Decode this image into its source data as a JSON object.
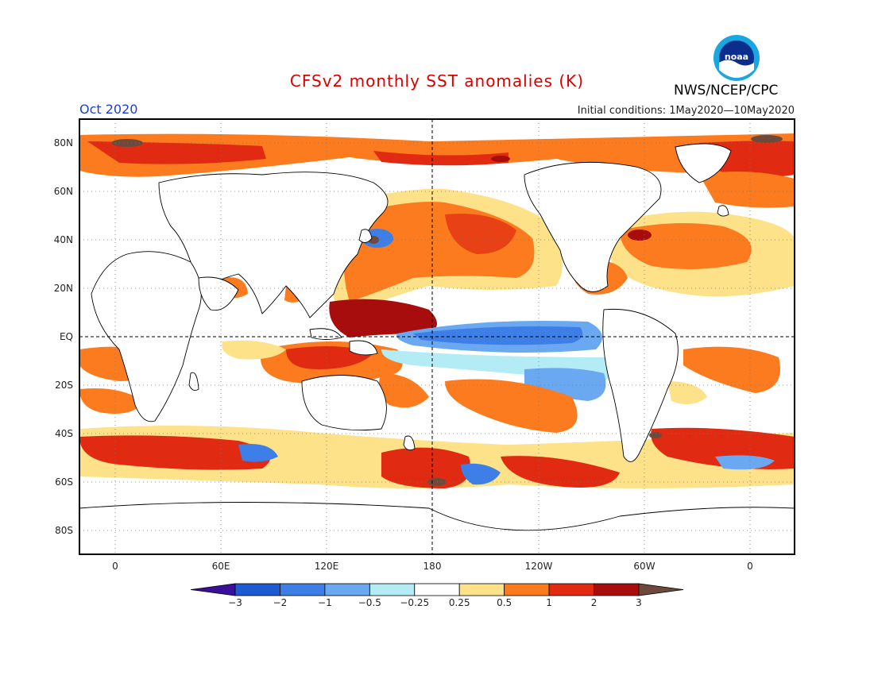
{
  "header": {
    "title": "CFSv2 monthly SST anomalies (K)",
    "month": "Oct 2020",
    "initial_conditions": "Initial conditions: 1May2020—10May2020",
    "organization": "NWS/NCEP/CPC",
    "logo_text": "noaa"
  },
  "axes": {
    "lat_labels": [
      "80N",
      "60N",
      "40N",
      "20N",
      "EQ",
      "20S",
      "40S",
      "60S",
      "80S"
    ],
    "lon_labels": [
      "0",
      "60E",
      "120E",
      "180",
      "120W",
      "60W",
      "0"
    ]
  },
  "colorbar": {
    "labels": [
      "−3",
      "−2",
      "−1",
      "−0.5",
      "−0.25",
      "0.25",
      "0.5",
      "1",
      "2",
      "3"
    ],
    "colors": [
      "#3a0f9c",
      "#1f5bd0",
      "#3d7fe6",
      "#6aa8f2",
      "#b3ecf4",
      "#ffffff",
      "#fde28a",
      "#fb7b1e",
      "#e02a12",
      "#a80d0d",
      "#6e4a3c"
    ]
  },
  "colors": {
    "title": "#d90000",
    "month": "#1e40d0"
  }
}
